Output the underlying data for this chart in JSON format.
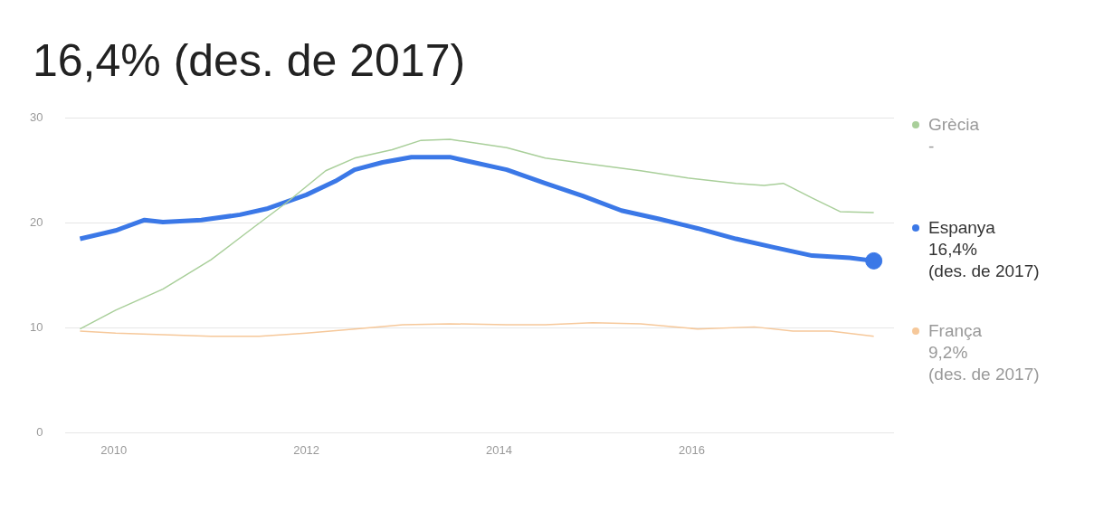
{
  "chart_data": {
    "type": "line",
    "title": "16,4% (des. de 2017)",
    "xlim": [
      2009.5,
      2018.1
    ],
    "xticks": [
      2010,
      2012,
      2014,
      2016
    ],
    "ylim": [
      0,
      30
    ],
    "yticks": [
      0,
      10,
      20,
      30
    ],
    "grid": "y",
    "legend": "right",
    "annotations": [
      "-",
      "16,4%\n(des. de 2017)",
      "9,2%\n(des. de 2017)"
    ],
    "series": [
      {
        "name": "Grècia",
        "color": "#a9cf9a",
        "x": [
          2009.65,
          2010.02,
          2010.51,
          2011.01,
          2011.41,
          2011.8,
          2012.2,
          2012.5,
          2012.89,
          2013.19,
          2013.49,
          2013.78,
          2014.08,
          2014.48,
          2014.97,
          2015.47,
          2015.96,
          2016.46,
          2016.75,
          2016.95,
          2017.25,
          2017.54,
          2017.89
        ],
        "values": [
          9.9,
          11.7,
          13.7,
          16.5,
          19.3,
          22.0,
          25.0,
          26.2,
          27.0,
          27.9,
          28.0,
          27.6,
          27.2,
          26.2,
          25.6,
          25.0,
          24.3,
          23.8,
          23.6,
          23.8,
          22.4,
          21.1,
          21.0
        ]
      },
      {
        "name": "Espanya",
        "color": "#3b78e7",
        "x": [
          2009.65,
          2010.02,
          2010.32,
          2010.51,
          2010.91,
          2011.31,
          2011.6,
          2012.0,
          2012.3,
          2012.5,
          2012.79,
          2013.09,
          2013.49,
          2013.68,
          2014.08,
          2014.48,
          2014.87,
          2015.27,
          2015.66,
          2016.06,
          2016.46,
          2016.85,
          2017.25,
          2017.64,
          2017.89
        ],
        "values": [
          18.5,
          19.3,
          20.3,
          20.1,
          20.3,
          20.8,
          21.4,
          22.7,
          24.0,
          25.1,
          25.8,
          26.3,
          26.3,
          25.9,
          25.1,
          23.8,
          22.6,
          21.2,
          20.4,
          19.5,
          18.5,
          17.7,
          16.9,
          16.7,
          16.4
        ]
      },
      {
        "name": "França",
        "color": "#f6c89a",
        "x": [
          2009.65,
          2010.02,
          2011.01,
          2011.51,
          2012.0,
          2012.5,
          2013.0,
          2013.49,
          2014.08,
          2014.48,
          2014.97,
          2015.47,
          2016.06,
          2016.65,
          2017.05,
          2017.44,
          2017.89
        ],
        "values": [
          9.7,
          9.5,
          9.2,
          9.2,
          9.5,
          9.9,
          10.3,
          10.4,
          10.3,
          10.3,
          10.5,
          10.4,
          9.9,
          10.1,
          9.7,
          9.7,
          9.2
        ]
      },
      {
        "type": "scatter",
        "marker": "circle",
        "color": "#3b78e7",
        "x": [
          2017.89
        ],
        "values": [
          16.4
        ]
      }
    ]
  }
}
